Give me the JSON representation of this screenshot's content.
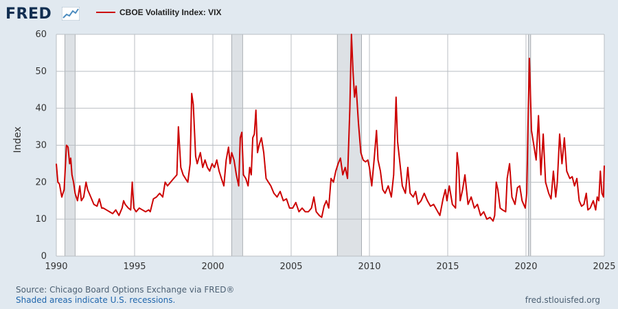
{
  "header": {
    "logo_text": "FRED",
    "logo_icon": "chart-line-icon"
  },
  "legend": {
    "label": "CBOE Volatility Index: VIX",
    "color": "#cc0000"
  },
  "footer": {
    "source": "Source: Chicago Board Options Exchange via FRED®",
    "recessions_note": "Shaded areas indicate U.S. recessions.",
    "url": "fred.stlouisfed.org"
  },
  "chart_data": {
    "type": "line",
    "ylabel": "Index",
    "xlabel": "",
    "xlim": [
      1990,
      2025
    ],
    "ylim": [
      0,
      60
    ],
    "yticks": [
      0,
      10,
      20,
      30,
      40,
      50,
      60
    ],
    "xticks": [
      1990,
      1995,
      2000,
      2005,
      2010,
      2015,
      2020,
      2025
    ],
    "grid": true,
    "recessions": [
      [
        1990.55,
        1991.2
      ],
      [
        2001.2,
        2001.9
      ],
      [
        2007.95,
        2009.5
      ],
      [
        2020.15,
        2020.3
      ]
    ],
    "series": [
      {
        "name": "CBOE Volatility Index: VIX",
        "color": "#cc0000",
        "points": [
          [
            1990.0,
            25
          ],
          [
            1990.1,
            20
          ],
          [
            1990.2,
            19.5
          ],
          [
            1990.35,
            16
          ],
          [
            1990.5,
            18
          ],
          [
            1990.65,
            30
          ],
          [
            1990.75,
            29.5
          ],
          [
            1990.85,
            25
          ],
          [
            1990.92,
            26.5
          ],
          [
            1991.0,
            22
          ],
          [
            1991.1,
            20
          ],
          [
            1991.2,
            17
          ],
          [
            1991.35,
            15
          ],
          [
            1991.5,
            19
          ],
          [
            1991.6,
            15
          ],
          [
            1991.75,
            16
          ],
          [
            1991.9,
            20
          ],
          [
            1992.0,
            18
          ],
          [
            1992.2,
            16
          ],
          [
            1992.4,
            14
          ],
          [
            1992.6,
            13.5
          ],
          [
            1992.75,
            15.5
          ],
          [
            1992.9,
            13
          ],
          [
            1993.0,
            13
          ],
          [
            1993.2,
            12.5
          ],
          [
            1993.4,
            12
          ],
          [
            1993.6,
            11.5
          ],
          [
            1993.8,
            12.5
          ],
          [
            1994.0,
            11
          ],
          [
            1994.2,
            13
          ],
          [
            1994.3,
            15
          ],
          [
            1994.4,
            14
          ],
          [
            1994.6,
            13
          ],
          [
            1994.75,
            12.5
          ],
          [
            1994.85,
            20
          ],
          [
            1994.95,
            13
          ],
          [
            1995.1,
            12
          ],
          [
            1995.3,
            13
          ],
          [
            1995.5,
            12.5
          ],
          [
            1995.7,
            12
          ],
          [
            1995.9,
            12.5
          ],
          [
            1996.0,
            12
          ],
          [
            1996.2,
            15.5
          ],
          [
            1996.4,
            16
          ],
          [
            1996.6,
            17
          ],
          [
            1996.8,
            16
          ],
          [
            1996.95,
            20
          ],
          [
            1997.1,
            19
          ],
          [
            1997.3,
            20
          ],
          [
            1997.5,
            21
          ],
          [
            1997.7,
            22
          ],
          [
            1997.8,
            35
          ],
          [
            1997.95,
            24
          ],
          [
            1998.1,
            22
          ],
          [
            1998.25,
            21
          ],
          [
            1998.4,
            20
          ],
          [
            1998.55,
            25
          ],
          [
            1998.65,
            44
          ],
          [
            1998.75,
            41
          ],
          [
            1998.9,
            27
          ],
          [
            1999.0,
            25
          ],
          [
            1999.2,
            28
          ],
          [
            1999.35,
            24
          ],
          [
            1999.5,
            26
          ],
          [
            1999.65,
            24
          ],
          [
            1999.8,
            23
          ],
          [
            1999.95,
            25
          ],
          [
            2000.1,
            24
          ],
          [
            2000.25,
            26
          ],
          [
            2000.4,
            23
          ],
          [
            2000.55,
            21
          ],
          [
            2000.7,
            19
          ],
          [
            2000.85,
            26
          ],
          [
            2001.0,
            29.5
          ],
          [
            2001.1,
            25
          ],
          [
            2001.2,
            28
          ],
          [
            2001.35,
            26
          ],
          [
            2001.5,
            22
          ],
          [
            2001.65,
            19
          ],
          [
            2001.75,
            32
          ],
          [
            2001.85,
            33.5
          ],
          [
            2001.95,
            22
          ],
          [
            2002.1,
            21
          ],
          [
            2002.25,
            19
          ],
          [
            2002.35,
            24
          ],
          [
            2002.45,
            22
          ],
          [
            2002.55,
            32
          ],
          [
            2002.65,
            33
          ],
          [
            2002.75,
            39.5
          ],
          [
            2002.85,
            28
          ],
          [
            2002.95,
            30
          ],
          [
            2003.1,
            32
          ],
          [
            2003.25,
            28
          ],
          [
            2003.4,
            21
          ],
          [
            2003.55,
            20
          ],
          [
            2003.7,
            19
          ],
          [
            2003.9,
            17
          ],
          [
            2004.1,
            16
          ],
          [
            2004.3,
            17.5
          ],
          [
            2004.5,
            15
          ],
          [
            2004.7,
            15.5
          ],
          [
            2004.9,
            13
          ],
          [
            2005.1,
            13
          ],
          [
            2005.3,
            14.5
          ],
          [
            2005.5,
            12
          ],
          [
            2005.7,
            13
          ],
          [
            2005.9,
            12
          ],
          [
            2006.1,
            12
          ],
          [
            2006.3,
            13
          ],
          [
            2006.45,
            16
          ],
          [
            2006.6,
            12
          ],
          [
            2006.8,
            11
          ],
          [
            2006.95,
            10.5
          ],
          [
            2007.1,
            13.5
          ],
          [
            2007.25,
            15
          ],
          [
            2007.4,
            13
          ],
          [
            2007.55,
            21
          ],
          [
            2007.7,
            20
          ],
          [
            2007.85,
            23
          ],
          [
            2008.0,
            25
          ],
          [
            2008.15,
            26.5
          ],
          [
            2008.3,
            22
          ],
          [
            2008.45,
            24
          ],
          [
            2008.6,
            21
          ],
          [
            2008.75,
            40
          ],
          [
            2008.85,
            60
          ],
          [
            2008.95,
            50
          ],
          [
            2009.05,
            43
          ],
          [
            2009.15,
            46
          ],
          [
            2009.3,
            36
          ],
          [
            2009.45,
            28
          ],
          [
            2009.6,
            26
          ],
          [
            2009.75,
            25.5
          ],
          [
            2009.9,
            26
          ],
          [
            2010.0,
            24
          ],
          [
            2010.15,
            19
          ],
          [
            2010.3,
            26
          ],
          [
            2010.45,
            34
          ],
          [
            2010.55,
            26
          ],
          [
            2010.7,
            23
          ],
          [
            2010.85,
            18
          ],
          [
            2011.0,
            17
          ],
          [
            2011.2,
            19
          ],
          [
            2011.4,
            16
          ],
          [
            2011.55,
            22
          ],
          [
            2011.7,
            43
          ],
          [
            2011.8,
            31
          ],
          [
            2011.95,
            25
          ],
          [
            2012.1,
            19
          ],
          [
            2012.3,
            17
          ],
          [
            2012.45,
            24
          ],
          [
            2012.6,
            17
          ],
          [
            2012.8,
            16
          ],
          [
            2012.95,
            17.5
          ],
          [
            2013.1,
            14
          ],
          [
            2013.3,
            15
          ],
          [
            2013.5,
            17
          ],
          [
            2013.7,
            15
          ],
          [
            2013.9,
            13.5
          ],
          [
            2014.1,
            14
          ],
          [
            2014.3,
            12.5
          ],
          [
            2014.5,
            11
          ],
          [
            2014.7,
            15.5
          ],
          [
            2014.85,
            18
          ],
          [
            2014.95,
            15
          ],
          [
            2015.1,
            19
          ],
          [
            2015.3,
            14
          ],
          [
            2015.5,
            13
          ],
          [
            2015.6,
            28
          ],
          [
            2015.7,
            24
          ],
          [
            2015.8,
            15
          ],
          [
            2015.95,
            18
          ],
          [
            2016.1,
            22
          ],
          [
            2016.3,
            14
          ],
          [
            2016.5,
            16
          ],
          [
            2016.7,
            13
          ],
          [
            2016.9,
            14
          ],
          [
            2017.1,
            11
          ],
          [
            2017.3,
            12
          ],
          [
            2017.5,
            10
          ],
          [
            2017.7,
            10.5
          ],
          [
            2017.9,
            9.5
          ],
          [
            2018.0,
            11
          ],
          [
            2018.1,
            20
          ],
          [
            2018.2,
            18
          ],
          [
            2018.35,
            13
          ],
          [
            2018.5,
            12.5
          ],
          [
            2018.7,
            12
          ],
          [
            2018.8,
            21
          ],
          [
            2018.95,
            25
          ],
          [
            2019.1,
            16
          ],
          [
            2019.3,
            14
          ],
          [
            2019.45,
            18.5
          ],
          [
            2019.6,
            19
          ],
          [
            2019.75,
            15
          ],
          [
            2019.95,
            13
          ],
          [
            2020.05,
            17
          ],
          [
            2020.15,
            40
          ],
          [
            2020.22,
            53.5
          ],
          [
            2020.35,
            34
          ],
          [
            2020.5,
            30
          ],
          [
            2020.65,
            26
          ],
          [
            2020.8,
            38
          ],
          [
            2020.95,
            22
          ],
          [
            2021.1,
            33
          ],
          [
            2021.25,
            20
          ],
          [
            2021.45,
            17
          ],
          [
            2021.6,
            15.5
          ],
          [
            2021.75,
            23
          ],
          [
            2021.9,
            16
          ],
          [
            2022.0,
            20
          ],
          [
            2022.15,
            33
          ],
          [
            2022.3,
            25
          ],
          [
            2022.45,
            32
          ],
          [
            2022.6,
            23
          ],
          [
            2022.8,
            21
          ],
          [
            2022.95,
            21.5
          ],
          [
            2023.1,
            19
          ],
          [
            2023.25,
            21
          ],
          [
            2023.4,
            15
          ],
          [
            2023.55,
            13.5
          ],
          [
            2023.7,
            14
          ],
          [
            2023.85,
            17
          ],
          [
            2023.95,
            12.5
          ],
          [
            2024.1,
            13
          ],
          [
            2024.3,
            15
          ],
          [
            2024.45,
            12.5
          ],
          [
            2024.55,
            16
          ],
          [
            2024.65,
            15
          ],
          [
            2024.75,
            23
          ],
          [
            2024.85,
            17
          ],
          [
            2024.95,
            16
          ],
          [
            2025.0,
            24.5
          ]
        ]
      }
    ]
  }
}
